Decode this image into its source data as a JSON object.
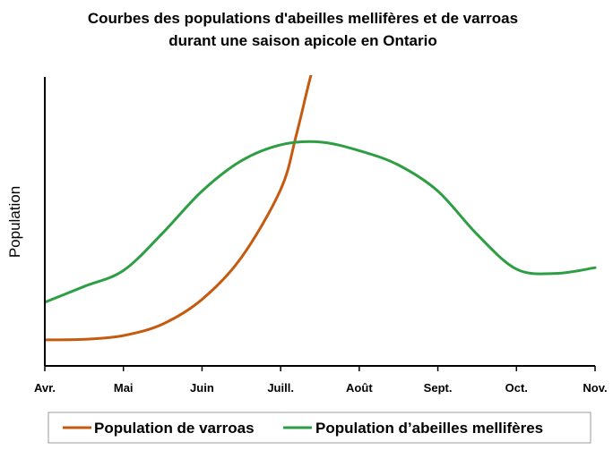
{
  "chart_data": {
    "type": "line",
    "title": [
      "Courbes des populations d'abeilles mellifères et de varroas",
      "durant une saison apicole en Ontario"
    ],
    "ylabel": "Population",
    "xlabel": "",
    "categories": [
      "Avr.",
      "Mai",
      "Juin",
      "Juill.",
      "Août",
      "Sept.",
      "Oct.",
      "Nov."
    ],
    "xlim": [
      0,
      7
    ],
    "ylim": [
      0,
      10
    ],
    "grid": false,
    "legend": "bottom",
    "series": [
      {
        "name": "Population de varroas",
        "color": "#C55A11",
        "x": [
          0,
          0.5,
          1,
          1.5,
          2,
          2.5,
          3,
          3.2,
          3.4,
          3.5
        ],
        "values": [
          0.9,
          0.92,
          1.05,
          1.45,
          2.3,
          3.75,
          6.1,
          8.0,
          10.2,
          10.8
        ]
      },
      {
        "name": "Population d’abeilles mellifères",
        "color": "#2E9E44",
        "x": [
          0,
          0.5,
          1,
          1.5,
          2,
          2.5,
          3,
          3.5,
          4,
          4.5,
          5,
          5.5,
          6,
          6.5,
          7
        ],
        "values": [
          2.2,
          2.75,
          3.3,
          4.6,
          6.05,
          7.1,
          7.65,
          7.75,
          7.45,
          6.95,
          6.05,
          4.55,
          3.35,
          3.2,
          3.4
        ]
      }
    ]
  }
}
